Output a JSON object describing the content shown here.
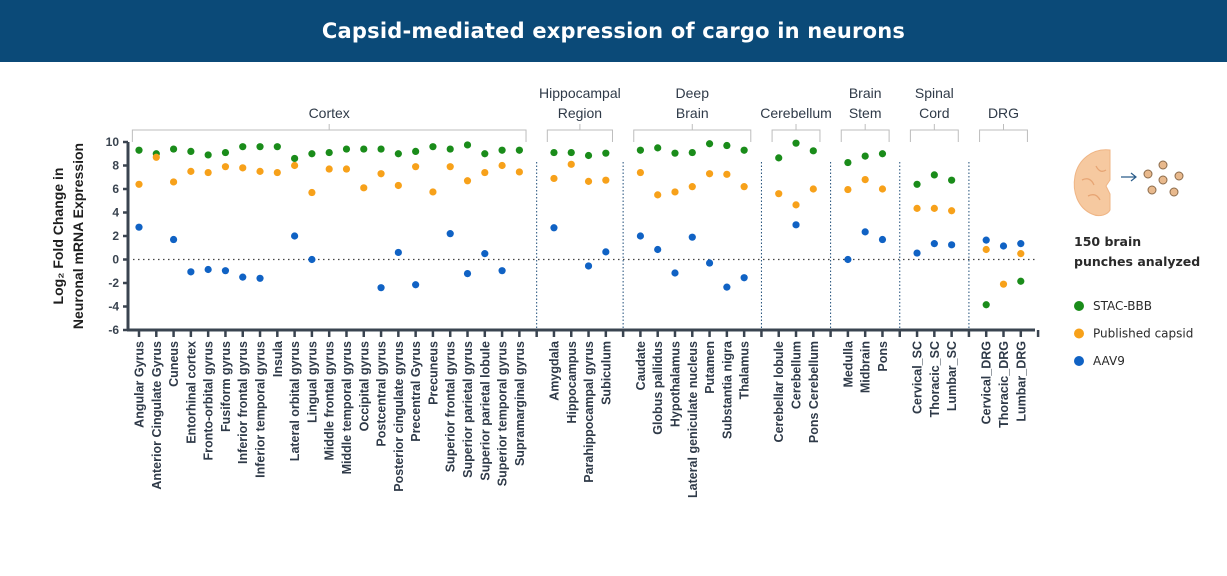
{
  "header": {
    "title": "Capsid-mediated expression of cargo in neurons"
  },
  "side_note": {
    "line1": "150 brain",
    "line2": "punches analyzed"
  },
  "chart_data": {
    "type": "scatter",
    "title": "Capsid-mediated expression of cargo in neurons",
    "xlabel": "",
    "ylabel_lines": [
      "Log₂ Fold Change in",
      "Neuronal mRNA Expression"
    ],
    "ylim": [
      -6,
      10
    ],
    "yticks": [
      "10",
      "8",
      "6",
      "4",
      "2",
      "0",
      "-2",
      "-4",
      "-6"
    ],
    "reference_line": 0,
    "legend_placement": "right",
    "series": [
      {
        "name": "STAC-BBB",
        "color": "#1a8c1a"
      },
      {
        "name": "Published capsid",
        "color": "#f7a11a"
      },
      {
        "name": "AAV9",
        "color": "#1062c4"
      }
    ],
    "groups": [
      {
        "label_lines": [
          "Cortex"
        ],
        "categories": [
          {
            "label": "Angular Gyrus",
            "values": [
              9.3,
              6.4,
              2.75
            ]
          },
          {
            "label": "Anterior Cingulate Gyrus",
            "values": [
              9.0,
              8.7,
              null
            ]
          },
          {
            "label": "Cuneus",
            "values": [
              9.4,
              6.6,
              1.7
            ]
          },
          {
            "label": "Entorhinal cortex",
            "values": [
              9.2,
              7.5,
              -1.05
            ]
          },
          {
            "label": "Fronto-orbital gyrus",
            "values": [
              8.9,
              7.4,
              -0.85
            ]
          },
          {
            "label": "Fusiform gyrus",
            "values": [
              9.1,
              7.9,
              -0.95
            ]
          },
          {
            "label": "Inferior frontal gyrus",
            "values": [
              9.6,
              7.8,
              -1.5
            ]
          },
          {
            "label": "Inferior temporal gyrus",
            "values": [
              9.6,
              7.5,
              -1.6
            ]
          },
          {
            "label": "Insula",
            "values": [
              9.6,
              7.4,
              null
            ]
          },
          {
            "label": "Lateral orbital gyrus",
            "values": [
              8.6,
              8.0,
              2.0
            ]
          },
          {
            "label": "Lingual gyrus",
            "values": [
              9.0,
              5.7,
              0.0
            ]
          },
          {
            "label": "Middle frontal gyrus",
            "values": [
              9.1,
              7.7,
              null
            ]
          },
          {
            "label": "Middle temporal gyrus",
            "values": [
              9.4,
              7.7,
              null
            ]
          },
          {
            "label": "Occipital gyrus",
            "values": [
              9.4,
              6.1,
              null
            ]
          },
          {
            "label": "Postcentral gyrus",
            "values": [
              9.4,
              7.3,
              -2.4
            ]
          },
          {
            "label": "Posterior cingulate gyrus",
            "values": [
              9.0,
              6.3,
              0.6
            ]
          },
          {
            "label": "Precentral Gyrus",
            "values": [
              9.2,
              7.9,
              -2.15
            ]
          },
          {
            "label": "Precuneus",
            "values": [
              9.6,
              5.75,
              null
            ]
          },
          {
            "label": "Superior frontal gyrus",
            "values": [
              9.4,
              7.9,
              2.2
            ]
          },
          {
            "label": "Superior parietal gyrus",
            "values": [
              9.75,
              6.7,
              -1.2
            ]
          },
          {
            "label": "Superior parietal lobule",
            "values": [
              9.0,
              7.4,
              0.5
            ]
          },
          {
            "label": "Superior temporal gyrus",
            "values": [
              9.3,
              8.0,
              -0.95
            ]
          },
          {
            "label": "Supramarginal gyrus",
            "values": [
              9.3,
              7.45,
              null
            ]
          }
        ]
      },
      {
        "label_lines": [
          "Hippocampal",
          "Region"
        ],
        "categories": [
          {
            "label": "Amygdala",
            "values": [
              9.1,
              6.9,
              2.7
            ]
          },
          {
            "label": "Hippocampus",
            "values": [
              9.1,
              8.1,
              null
            ]
          },
          {
            "label": "Parahippocampal gyrus",
            "values": [
              8.85,
              6.65,
              -0.55
            ]
          },
          {
            "label": "Subiculum",
            "values": [
              9.05,
              6.75,
              0.65
            ]
          }
        ]
      },
      {
        "label_lines": [
          "Deep",
          "Brain"
        ],
        "categories": [
          {
            "label": "Caudate",
            "values": [
              9.3,
              7.4,
              2.0
            ]
          },
          {
            "label": "Globus pallidus",
            "values": [
              9.5,
              5.5,
              0.85
            ]
          },
          {
            "label": "Hypothalamus",
            "values": [
              9.05,
              5.75,
              -1.15
            ]
          },
          {
            "label": "Lateral geniculate nucleus",
            "values": [
              9.1,
              6.2,
              1.9
            ]
          },
          {
            "label": "Putamen",
            "values": [
              9.85,
              7.3,
              -0.3
            ]
          },
          {
            "label": "Substantia nigra",
            "values": [
              9.7,
              7.25,
              -2.35
            ]
          },
          {
            "label": "Thalamus",
            "values": [
              9.3,
              6.2,
              -1.55
            ]
          }
        ]
      },
      {
        "label_lines": [
          "Cerebellum"
        ],
        "categories": [
          {
            "label": "Cerebellar lobule",
            "values": [
              8.65,
              5.6,
              null
            ]
          },
          {
            "label": "Cerebellum",
            "values": [
              9.9,
              4.65,
              2.95
            ]
          },
          {
            "label": "Pons Cerebellum",
            "values": [
              9.25,
              6.0,
              null
            ]
          }
        ]
      },
      {
        "label_lines": [
          "Brain",
          "Stem"
        ],
        "categories": [
          {
            "label": "Medulla",
            "values": [
              8.25,
              5.95,
              0.0
            ]
          },
          {
            "label": "Midbrain",
            "values": [
              8.8,
              6.8,
              2.35
            ]
          },
          {
            "label": "Pons",
            "values": [
              9.0,
              6.0,
              1.7
            ]
          }
        ]
      },
      {
        "label_lines": [
          "Spinal",
          "Cord"
        ],
        "categories": [
          {
            "label": "Cervical_SC",
            "values": [
              6.4,
              4.35,
              0.55
            ]
          },
          {
            "label": "Thoracic_SC",
            "values": [
              7.2,
              4.35,
              1.35
            ]
          },
          {
            "label": "Lumbar_SC",
            "values": [
              6.75,
              4.15,
              1.25
            ]
          }
        ]
      },
      {
        "label_lines": [
          "DRG"
        ],
        "categories": [
          {
            "label": "Cervical_DRG",
            "values": [
              -3.85,
              0.85,
              1.65
            ]
          },
          {
            "label": "Thoracic_DRG",
            "values": [
              null,
              -2.1,
              1.15
            ]
          },
          {
            "label": "Lumbar_DRG",
            "values": [
              -1.85,
              0.5,
              1.35
            ]
          }
        ]
      }
    ]
  }
}
